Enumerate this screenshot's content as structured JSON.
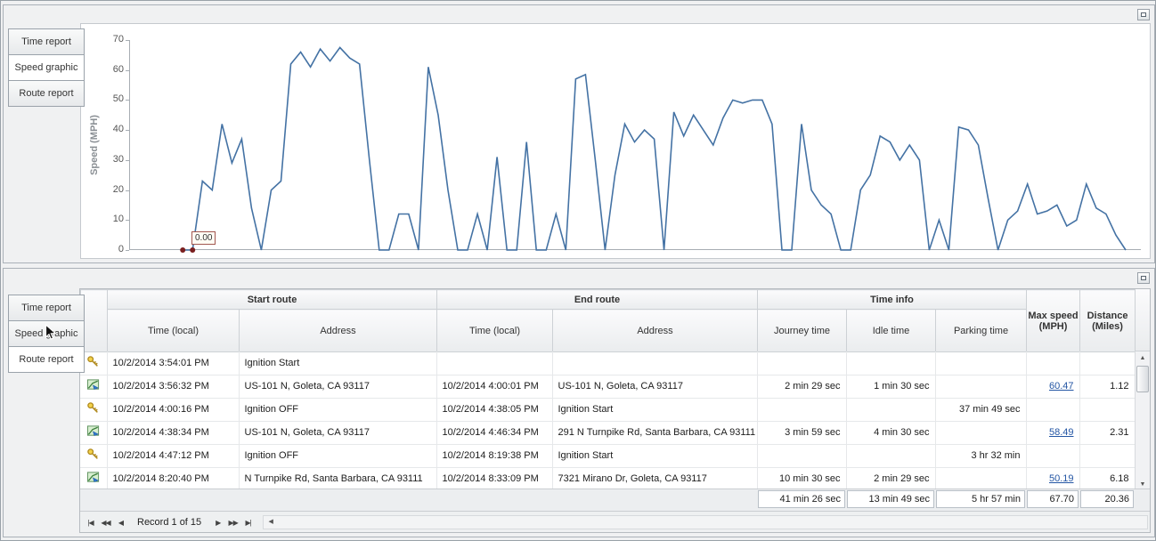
{
  "icons": {
    "scroll_up": "▲",
    "scroll_down": "▼",
    "scroll_left": "◀"
  },
  "colors": {
    "chart_line": "#4472a4",
    "marker": "#7a1f1f",
    "link": "#2456a4"
  },
  "top_panel": {
    "tabs": [
      {
        "label": "Time report"
      },
      {
        "label": "Speed graphic"
      },
      {
        "label": "Route report"
      }
    ],
    "active_tab": 1
  },
  "bottom_panel": {
    "tabs": [
      {
        "label": "Time report"
      },
      {
        "label": "Speed graphic"
      },
      {
        "label": "Route report"
      }
    ],
    "active_tab": 2
  },
  "chart_data": {
    "type": "line",
    "title": "",
    "xlabel": "",
    "ylabel": "Speed (MPH)",
    "ylim": [
      0,
      70
    ],
    "yticks": [
      0,
      10,
      20,
      30,
      40,
      50,
      60,
      70
    ],
    "grid": false,
    "legend": false,
    "line_color": "#4472a4",
    "marker_color": "#7a1f1f",
    "annotation": {
      "label": "0.00"
    },
    "series": [
      {
        "name": "Speed (MPH)",
        "values": [
          0,
          0,
          23,
          20,
          42,
          29,
          37,
          14,
          0,
          20,
          23,
          62,
          66,
          61,
          67,
          63,
          67.5,
          64,
          62,
          30,
          0,
          0,
          12,
          12,
          0,
          61,
          45,
          20,
          0,
          0,
          12,
          0,
          31,
          0,
          0,
          36,
          0,
          0,
          12,
          0,
          57,
          58.5,
          30,
          0,
          25,
          42,
          36,
          40,
          37,
          0,
          46,
          38,
          45,
          40,
          35,
          44,
          50,
          49,
          50,
          50,
          42,
          0,
          0,
          42,
          20,
          15,
          12,
          0,
          0,
          20,
          25,
          38,
          36,
          30,
          35,
          30,
          0,
          10,
          0,
          41,
          40,
          35,
          17,
          0,
          10,
          13,
          22,
          12,
          13,
          15,
          8,
          10,
          22,
          14,
          12,
          5,
          0
        ]
      }
    ]
  },
  "grid": {
    "group_headers": [
      "Start route",
      "End route",
      "Time info"
    ],
    "column_headers": [
      "Time (local)",
      "Address",
      "Time (local)",
      "Address",
      "Journey time",
      "Idle time",
      "Parking time",
      "Max speed (MPH)",
      "Distance (Miles)"
    ],
    "rows": [
      {
        "icon": "key",
        "start_time": "10/2/2014 3:54:01 PM",
        "start_address": "Ignition Start",
        "end_time": "",
        "end_address": "",
        "journey_time": "",
        "idle_time": "",
        "parking_time": "",
        "max_speed": "",
        "distance": "",
        "max_speed_is_link": false
      },
      {
        "icon": "route",
        "start_time": "10/2/2014 3:56:32 PM",
        "start_address": "US-101 N, Goleta, CA 93117",
        "end_time": "10/2/2014 4:00:01 PM",
        "end_address": "US-101 N, Goleta, CA 93117",
        "journey_time": "2 min 29 sec",
        "idle_time": "1 min 30 sec",
        "parking_time": "",
        "max_speed": "60.47",
        "distance": "1.12",
        "max_speed_is_link": true
      },
      {
        "icon": "key",
        "start_time": "10/2/2014 4:00:16 PM",
        "start_address": "Ignition OFF",
        "end_time": "10/2/2014 4:38:05 PM",
        "end_address": "Ignition Start",
        "journey_time": "",
        "idle_time": "",
        "parking_time": "37 min 49 sec",
        "max_speed": "",
        "distance": "",
        "max_speed_is_link": false
      },
      {
        "icon": "route",
        "start_time": "10/2/2014 4:38:34 PM",
        "start_address": "US-101 N, Goleta, CA 93117",
        "end_time": "10/2/2014 4:46:34 PM",
        "end_address": "291 N Turnpike Rd, Santa Barbara, CA 93111",
        "journey_time": "3 min 59 sec",
        "idle_time": "4 min 30 sec",
        "parking_time": "",
        "max_speed": "58.49",
        "distance": "2.31",
        "max_speed_is_link": true
      },
      {
        "icon": "key",
        "start_time": "10/2/2014 4:47:12 PM",
        "start_address": "Ignition OFF",
        "end_time": "10/2/2014 8:19:38 PM",
        "end_address": "Ignition Start",
        "journey_time": "",
        "idle_time": "",
        "parking_time": "3 hr 32 min",
        "max_speed": "",
        "distance": "",
        "max_speed_is_link": false
      },
      {
        "icon": "route",
        "start_time": "10/2/2014 8:20:40 PM",
        "start_address": "N Turnpike Rd, Santa Barbara, CA 93111",
        "end_time": "10/2/2014 8:33:09 PM",
        "end_address": "7321 Mirano Dr, Goleta, CA 93117",
        "journey_time": "10 min 30 sec",
        "idle_time": "2 min 29 sec",
        "parking_time": "",
        "max_speed": "50.19",
        "distance": "6.18",
        "max_speed_is_link": true
      }
    ],
    "summary": {
      "journey_time": "41 min 26 sec",
      "idle_time": "13 min 49 sec",
      "parking_time": "5 hr 57 min",
      "max_speed": "67.70",
      "distance": "20.36"
    },
    "pager": {
      "label": "Record 1 of 15",
      "buttons_left": [
        {
          "glyph": "|◀",
          "name": "first-record-button"
        },
        {
          "glyph": "◀◀",
          "name": "prev-page-button"
        },
        {
          "glyph": "◀",
          "name": "prev-record-button"
        }
      ],
      "buttons_right": [
        {
          "glyph": "▶",
          "name": "next-record-button"
        },
        {
          "glyph": "▶▶",
          "name": "next-page-button"
        },
        {
          "glyph": "▶|",
          "name": "last-record-button"
        }
      ]
    }
  }
}
